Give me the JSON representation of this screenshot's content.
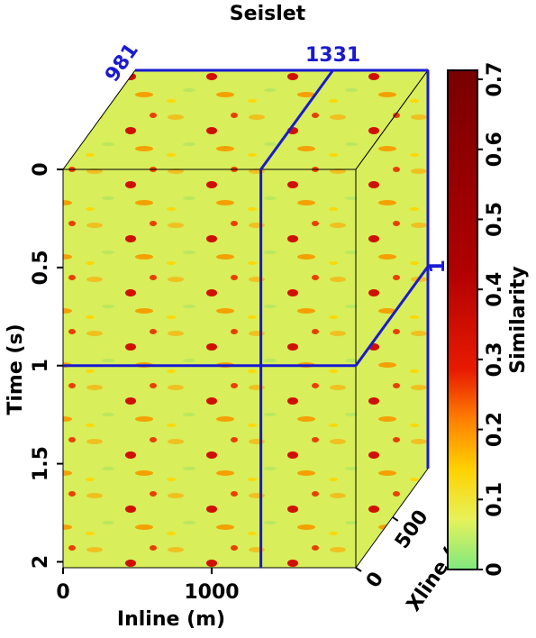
{
  "chart_data": {
    "type": "cube",
    "title": "Seislet",
    "xlabel": "Inline (m)",
    "ylabel": "Time (s)",
    "zlabel": "Xline (m)",
    "xlim": [
      0,
      1970
    ],
    "xticks": [
      0,
      1000
    ],
    "ylim": [
      0,
      2.03
    ],
    "yticks": [
      0,
      0.5,
      1,
      1.5,
      2
    ],
    "zlim": [
      0,
      981
    ],
    "zticks": [
      0,
      500
    ],
    "slices": {
      "inline": 1331,
      "xline": 981,
      "time": 1
    },
    "slice_color": "#1a1ad0",
    "colorbar": {
      "label": "Similarity",
      "lim": [
        0,
        0.7
      ],
      "ticks": [
        0,
        0.1,
        0.2,
        0.3,
        0.4,
        0.5,
        0.6,
        0.7
      ]
    }
  }
}
